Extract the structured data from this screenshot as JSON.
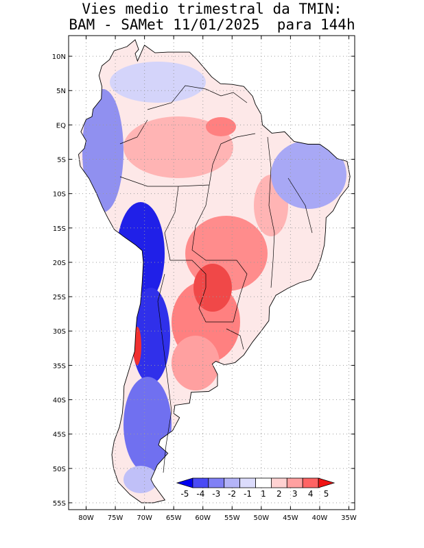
{
  "title": {
    "line1": "Vies medio trimestral da TMIN:",
    "line2": "BAM - SAMet 11/01/2025  para 144h"
  },
  "map": {
    "lon_range": [
      -83,
      -34
    ],
    "lat_range": [
      -56,
      13
    ],
    "lat_ticks": [
      "10N",
      "5N",
      "EQ",
      "5S",
      "10S",
      "15S",
      "20S",
      "25S",
      "30S",
      "35S",
      "40S",
      "45S",
      "50S",
      "55S"
    ],
    "lat_values": [
      10,
      5,
      0,
      -5,
      -10,
      -15,
      -20,
      -25,
      -30,
      -35,
      -40,
      -45,
      -50,
      -55
    ],
    "lon_ticks": [
      "80W",
      "75W",
      "70W",
      "65W",
      "60W",
      "55W",
      "50W",
      "45W",
      "40W",
      "35W"
    ],
    "lon_values": [
      -80,
      -75,
      -70,
      -65,
      -60,
      -55,
      -50,
      -45,
      -40,
      -35
    ]
  },
  "colorbar": {
    "labels": [
      "-5",
      "-4",
      "-3",
      "-2",
      "-1",
      "1",
      "2",
      "3",
      "4",
      "5"
    ],
    "colors": [
      "#0000f0",
      "#4a4af5",
      "#8080f5",
      "#b4b4f8",
      "#dcdcfc",
      "#ffffff",
      "#ffd2d2",
      "#ffa0a0",
      "#ff6464",
      "#f01414"
    ]
  },
  "colors": {
    "land": "#fde8e8",
    "warm": "#ff9a9a",
    "strong_warm": "#f23030",
    "cool": "#a8a8f5",
    "strong_cool": "#1010e8"
  }
}
